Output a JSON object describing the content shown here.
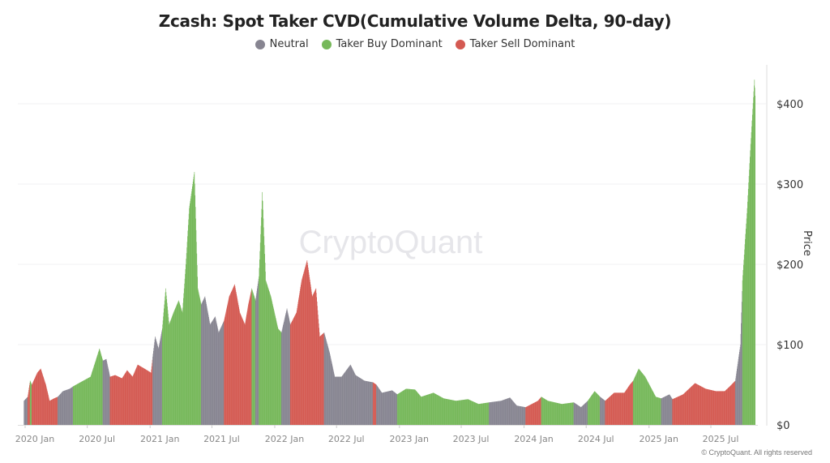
{
  "chart_data": {
    "type": "bar",
    "title": "Zcash: Spot Taker CVD(Cumulative Volume Delta, 90-day)",
    "ylabel": "Price",
    "ylim": [
      0,
      450
    ],
    "y_ticks": [
      "$0",
      "$100",
      "$200",
      "$300",
      "$400"
    ],
    "y_tick_values": [
      0,
      100,
      200,
      300,
      400
    ],
    "x_ticks": [
      "2020 Jan",
      "2020 Jul",
      "2021 Jan",
      "2021 Jul",
      "2022 Jan",
      "2022 Jul",
      "2023 Jan",
      "2023 Jul",
      "2024 Jan",
      "2024 Jul",
      "2025 Jan",
      "2025 Jul"
    ],
    "x_tick_dates": [
      "2020-01-01",
      "2020-07-01",
      "2021-01-01",
      "2021-07-01",
      "2022-01-01",
      "2022-07-01",
      "2023-01-01",
      "2023-07-01",
      "2024-01-01",
      "2024-07-01",
      "2025-01-01",
      "2025-07-01"
    ],
    "grid": true,
    "legend_placement": "top",
    "legend": [
      {
        "key": "neutral",
        "label": "Neutral",
        "color": "#878591"
      },
      {
        "key": "buy",
        "label": "Taker Buy Dominant",
        "color": "#76b85a"
      },
      {
        "key": "sell",
        "label": "Taker Sell Dominant",
        "color": "#d45a52"
      }
    ],
    "points": [
      [
        "2019-12-28",
        30,
        "neutral"
      ],
      [
        "2020-01-08",
        35,
        "sell"
      ],
      [
        "2020-01-15",
        55,
        "buy"
      ],
      [
        "2020-01-20",
        50,
        "sell"
      ],
      [
        "2020-02-05",
        65,
        "sell"
      ],
      [
        "2020-02-15",
        70,
        "sell"
      ],
      [
        "2020-03-01",
        50,
        "sell"
      ],
      [
        "2020-03-12",
        30,
        "sell"
      ],
      [
        "2020-03-25",
        33,
        "sell"
      ],
      [
        "2020-04-05",
        35,
        "neutral"
      ],
      [
        "2020-04-20",
        42,
        "neutral"
      ],
      [
        "2020-05-10",
        45,
        "neutral"
      ],
      [
        "2020-05-20",
        48,
        "buy"
      ],
      [
        "2020-06-10",
        53,
        "buy"
      ],
      [
        "2020-07-10",
        60,
        "buy"
      ],
      [
        "2020-07-25",
        80,
        "buy"
      ],
      [
        "2020-08-05",
        95,
        "buy"
      ],
      [
        "2020-08-15",
        80,
        "neutral"
      ],
      [
        "2020-08-25",
        82,
        "neutral"
      ],
      [
        "2020-09-05",
        60,
        "sell"
      ],
      [
        "2020-09-20",
        62,
        "sell"
      ],
      [
        "2020-10-10",
        58,
        "sell"
      ],
      [
        "2020-10-25",
        68,
        "sell"
      ],
      [
        "2020-11-10",
        60,
        "sell"
      ],
      [
        "2020-11-25",
        75,
        "sell"
      ],
      [
        "2020-12-15",
        70,
        "sell"
      ],
      [
        "2021-01-03",
        65,
        "sell"
      ],
      [
        "2021-01-08",
        85,
        "neutral"
      ],
      [
        "2021-01-15",
        110,
        "neutral"
      ],
      [
        "2021-01-25",
        95,
        "neutral"
      ],
      [
        "2021-02-05",
        120,
        "buy"
      ],
      [
        "2021-02-15",
        170,
        "buy"
      ],
      [
        "2021-02-25",
        125,
        "buy"
      ],
      [
        "2021-03-10",
        140,
        "buy"
      ],
      [
        "2021-03-25",
        155,
        "buy"
      ],
      [
        "2021-04-05",
        140,
        "buy"
      ],
      [
        "2021-04-15",
        200,
        "buy"
      ],
      [
        "2021-04-25",
        270,
        "buy"
      ],
      [
        "2021-05-10",
        315,
        "buy"
      ],
      [
        "2021-05-20",
        170,
        "buy"
      ],
      [
        "2021-05-30",
        150,
        "neutral"
      ],
      [
        "2021-06-10",
        160,
        "neutral"
      ],
      [
        "2021-06-25",
        125,
        "neutral"
      ],
      [
        "2021-07-10",
        135,
        "neutral"
      ],
      [
        "2021-07-20",
        115,
        "neutral"
      ],
      [
        "2021-08-05",
        130,
        "sell"
      ],
      [
        "2021-08-20",
        160,
        "sell"
      ],
      [
        "2021-09-05",
        175,
        "sell"
      ],
      [
        "2021-09-20",
        140,
        "sell"
      ],
      [
        "2021-10-05",
        125,
        "sell"
      ],
      [
        "2021-10-15",
        150,
        "sell"
      ],
      [
        "2021-10-25",
        170,
        "buy"
      ],
      [
        "2021-11-05",
        155,
        "neutral"
      ],
      [
        "2021-11-15",
        185,
        "buy"
      ],
      [
        "2021-11-25",
        290,
        "buy"
      ],
      [
        "2021-12-05",
        180,
        "buy"
      ],
      [
        "2021-12-20",
        160,
        "buy"
      ],
      [
        "2022-01-10",
        120,
        "buy"
      ],
      [
        "2022-01-20",
        115,
        "neutral"
      ],
      [
        "2022-02-05",
        145,
        "neutral"
      ],
      [
        "2022-02-15",
        125,
        "sell"
      ],
      [
        "2022-03-05",
        140,
        "sell"
      ],
      [
        "2022-03-20",
        180,
        "sell"
      ],
      [
        "2022-04-05",
        205,
        "sell"
      ],
      [
        "2022-04-20",
        160,
        "sell"
      ],
      [
        "2022-05-01",
        170,
        "sell"
      ],
      [
        "2022-05-12",
        110,
        "sell"
      ],
      [
        "2022-05-25",
        115,
        "neutral"
      ],
      [
        "2022-06-10",
        90,
        "neutral"
      ],
      [
        "2022-06-25",
        60,
        "neutral"
      ],
      [
        "2022-07-15",
        60,
        "neutral"
      ],
      [
        "2022-08-10",
        75,
        "neutral"
      ],
      [
        "2022-08-25",
        62,
        "neutral"
      ],
      [
        "2022-09-20",
        55,
        "neutral"
      ],
      [
        "2022-10-15",
        53,
        "sell"
      ],
      [
        "2022-10-25",
        50,
        "neutral"
      ],
      [
        "2022-11-10",
        40,
        "neutral"
      ],
      [
        "2022-12-10",
        43,
        "neutral"
      ],
      [
        "2022-12-25",
        38,
        "buy"
      ],
      [
        "2023-01-20",
        45,
        "buy"
      ],
      [
        "2023-02-15",
        44,
        "buy"
      ],
      [
        "2023-03-05",
        35,
        "buy"
      ],
      [
        "2023-04-10",
        40,
        "buy"
      ],
      [
        "2023-05-10",
        33,
        "buy"
      ],
      [
        "2023-06-15",
        30,
        "buy"
      ],
      [
        "2023-07-20",
        32,
        "buy"
      ],
      [
        "2023-08-20",
        26,
        "buy"
      ],
      [
        "2023-09-20",
        28,
        "neutral"
      ],
      [
        "2023-10-25",
        30,
        "neutral"
      ],
      [
        "2023-11-20",
        34,
        "neutral"
      ],
      [
        "2023-12-10",
        24,
        "neutral"
      ],
      [
        "2024-01-05",
        22,
        "sell"
      ],
      [
        "2024-02-10",
        30,
        "sell"
      ],
      [
        "2024-02-20",
        35,
        "buy"
      ],
      [
        "2024-03-10",
        30,
        "buy"
      ],
      [
        "2024-04-20",
        26,
        "buy"
      ],
      [
        "2024-05-25",
        28,
        "neutral"
      ],
      [
        "2024-06-15",
        22,
        "neutral"
      ],
      [
        "2024-07-05",
        30,
        "buy"
      ],
      [
        "2024-07-25",
        42,
        "buy"
      ],
      [
        "2024-08-10",
        35,
        "neutral"
      ],
      [
        "2024-08-25",
        30,
        "sell"
      ],
      [
        "2024-09-20",
        40,
        "sell"
      ],
      [
        "2024-10-20",
        40,
        "sell"
      ],
      [
        "2024-11-05",
        50,
        "sell"
      ],
      [
        "2024-11-15",
        55,
        "buy"
      ],
      [
        "2024-12-01",
        70,
        "buy"
      ],
      [
        "2024-12-20",
        60,
        "buy"
      ],
      [
        "2025-01-20",
        35,
        "buy"
      ],
      [
        "2025-02-05",
        33,
        "neutral"
      ],
      [
        "2025-03-01",
        38,
        "neutral"
      ],
      [
        "2025-03-10",
        32,
        "sell"
      ],
      [
        "2025-04-10",
        38,
        "sell"
      ],
      [
        "2025-05-15",
        52,
        "sell"
      ],
      [
        "2025-06-15",
        45,
        "sell"
      ],
      [
        "2025-07-15",
        42,
        "sell"
      ],
      [
        "2025-08-10",
        42,
        "sell"
      ],
      [
        "2025-08-25",
        48,
        "sell"
      ],
      [
        "2025-09-10",
        55,
        "neutral"
      ],
      [
        "2025-09-25",
        100,
        "neutral"
      ],
      [
        "2025-10-01",
        180,
        "buy"
      ],
      [
        "2025-10-15",
        270,
        "buy"
      ],
      [
        "2025-10-25",
        350,
        "buy"
      ],
      [
        "2025-11-05",
        430,
        "buy"
      ],
      [
        "2025-11-08",
        400,
        "buy"
      ]
    ]
  },
  "watermark": "CryptoQuant",
  "copyright": "© CryptoQuant. All rights reserved"
}
